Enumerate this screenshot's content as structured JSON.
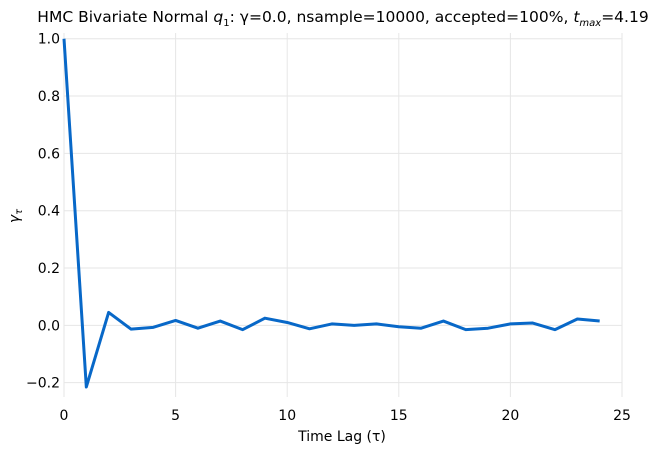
{
  "chart_data": {
    "type": "line",
    "title": {
      "prefix": "HMC Bivariate Normal ",
      "var_main": "q",
      "var_sub": "1",
      "middle": ": γ=0.0, nsample=10000, accepted=100%, ",
      "tmax_main": "t",
      "tmax_sub": "max",
      "suffix": "=4.19"
    },
    "xlabel": "Time Lag (τ)",
    "ylabel": {
      "main": "γ",
      "sub": "τ"
    },
    "xlim": [
      0,
      25
    ],
    "ylim": [
      -0.25,
      1.02
    ],
    "xticks": [
      0,
      5,
      10,
      15,
      20,
      25
    ],
    "xtick_labels": [
      "0",
      "5",
      "10",
      "15",
      "20",
      "25"
    ],
    "yticks": [
      -0.2,
      0.0,
      0.2,
      0.4,
      0.6,
      0.8,
      1.0
    ],
    "ytick_labels": [
      "−0.2",
      "0.0",
      "0.2",
      "0.4",
      "0.6",
      "0.8",
      "1.0"
    ],
    "grid": true,
    "series": [
      {
        "color": "#0868c8",
        "x": [
          0,
          1,
          2,
          3,
          4,
          5,
          6,
          7,
          8,
          9,
          10,
          11,
          12,
          13,
          14,
          15,
          16,
          17,
          18,
          19,
          20,
          21,
          22,
          23,
          24
        ],
        "y": [
          1.0,
          -0.215,
          0.045,
          -0.013,
          -0.007,
          0.017,
          -0.01,
          0.015,
          -0.015,
          0.025,
          0.01,
          -0.012,
          0.005,
          0.0,
          0.005,
          -0.005,
          -0.01,
          0.015,
          -0.015,
          -0.01,
          0.005,
          0.008,
          -0.015,
          0.022,
          0.015
        ]
      }
    ]
  }
}
